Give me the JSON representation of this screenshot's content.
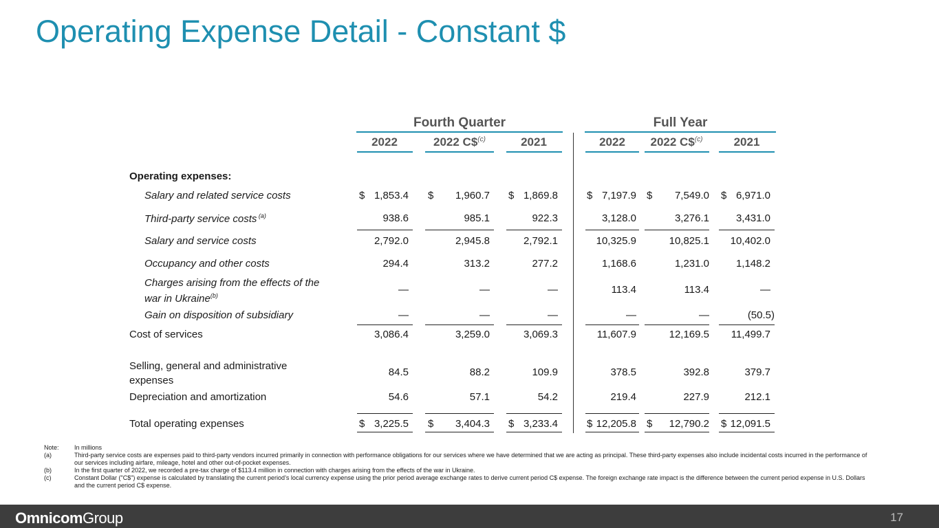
{
  "title": "Operating Expense Detail - Constant $",
  "groups": {
    "q4": "Fourth Quarter",
    "fy": "Full Year"
  },
  "columns": {
    "q4_2022": "2022",
    "q4_2022cs": "2022 C$",
    "q4_2022cs_sup": "(c)",
    "q4_2021": "2021",
    "fy_2022": "2022",
    "fy_2022cs": "2022 C$",
    "fy_2022cs_sup": "(c)",
    "fy_2021": "2021"
  },
  "section_header": "Operating expenses:",
  "rows": [
    {
      "label": "Salary and related service costs",
      "sup": "",
      "values": [
        "1,853.4",
        "1,960.7",
        "1,869.8",
        "7,197.9",
        "7,549.0",
        "6,971.0"
      ],
      "dollar": true
    },
    {
      "label": "Third-party service costs",
      "sup": " (a)",
      "values": [
        "938.6",
        "985.1",
        "922.3",
        "3,128.0",
        "3,276.1",
        "3,431.0"
      ]
    },
    {
      "label": "Salary and service costs",
      "sup": "",
      "values": [
        "2,792.0",
        "2,945.8",
        "2,792.1",
        "10,325.9",
        "10,825.1",
        "10,402.0"
      ]
    },
    {
      "label": "Occupancy and other costs",
      "sup": "",
      "values": [
        "294.4",
        "313.2",
        "277.2",
        "1,168.6",
        "1,231.0",
        "1,148.2"
      ]
    },
    {
      "label_line1": "Charges arising from the effects of the",
      "label_line2": "war in Ukraine",
      "sup": "(b)",
      "values": [
        "—",
        "—",
        "—",
        "113.4",
        "113.4",
        "—"
      ]
    },
    {
      "label": "Gain on disposition of subsidiary",
      "sup": "",
      "values": [
        "—",
        "—",
        "—",
        "—",
        "—",
        "(50.5)"
      ]
    },
    {
      "label": "Cost of services",
      "values": [
        "3,086.4",
        "3,259.0",
        "3,069.3",
        "11,607.9",
        "12,169.5",
        "11,499.7"
      ]
    },
    {
      "label_line1": "Selling, general and administrative",
      "label_line2": "expenses",
      "values": [
        "84.5",
        "88.2",
        "109.9",
        "378.5",
        "392.8",
        "379.7"
      ]
    },
    {
      "label": "Depreciation and amortization",
      "values": [
        "54.6",
        "57.1",
        "54.2",
        "219.4",
        "227.9",
        "212.1"
      ]
    },
    {
      "label": "Total operating expenses",
      "values": [
        "3,225.5",
        "3,404.3",
        "3,233.4",
        "12,205.8",
        "12,790.2",
        "12,091.5"
      ],
      "dollar": true
    }
  ],
  "dollar_sign": "$",
  "notes": [
    {
      "key": "Note:",
      "text": "In millions"
    },
    {
      "key": "(a)",
      "text": "Third-party service costs are expenses paid to third-party vendors incurred primarily in connection with performance obligations for our services where we have determined that we are acting as principal. These third-party expenses also include incidental costs incurred in the performance of our services including airfare, mileage, hotel and other out-of-pocket expenses."
    },
    {
      "key": "(b)",
      "text": "In the first quarter of 2022, we recorded a pre-tax charge of $113.4 million in connection with charges arising from the effects of the war in Ukraine."
    },
    {
      "key": "(c)",
      "text": "Constant Dollar (\"C$\") expense is calculated by translating the current period’s local currency expense using the prior period average exchange rates to derive current period C$ expense. The foreign exchange rate impact is the difference between the current period expense in U.S. Dollars and the current period C$ expense."
    }
  ],
  "footer": {
    "logo_bold": "Omnicom",
    "logo_light": "Group",
    "page_number": "17"
  },
  "colors": {
    "accent": "#1e8fb0",
    "footer_bg": "#3d3d3d"
  }
}
